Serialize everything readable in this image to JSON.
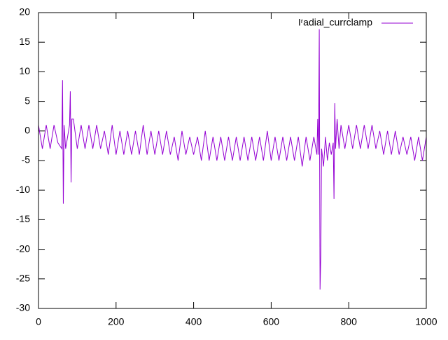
{
  "chart_data": {
    "type": "line",
    "x": [
      0,
      10,
      20,
      30,
      40,
      50,
      60,
      62,
      64,
      66,
      70,
      80,
      82,
      84,
      86,
      90,
      100,
      110,
      120,
      130,
      140,
      150,
      160,
      170,
      180,
      190,
      200,
      210,
      220,
      230,
      240,
      250,
      260,
      270,
      280,
      290,
      300,
      310,
      320,
      330,
      340,
      350,
      360,
      370,
      380,
      390,
      400,
      410,
      420,
      430,
      440,
      450,
      460,
      470,
      480,
      490,
      500,
      510,
      520,
      530,
      540,
      550,
      560,
      570,
      580,
      590,
      600,
      610,
      620,
      630,
      640,
      650,
      660,
      670,
      680,
      690,
      700,
      710,
      718,
      720,
      722,
      724,
      726,
      728,
      730,
      735,
      740,
      745,
      750,
      755,
      760,
      762,
      764,
      766,
      770,
      775,
      780,
      790,
      800,
      810,
      820,
      830,
      840,
      850,
      860,
      870,
      880,
      890,
      900,
      910,
      920,
      930,
      940,
      950,
      960,
      970,
      980,
      990,
      1000
    ],
    "series": [
      {
        "name": "Iʳadial_currclamp",
        "color": "#9400d3",
        "values": [
          1,
          -3,
          1,
          -3,
          1,
          -2,
          -3,
          8.6,
          -12.3,
          1,
          -3,
          1,
          6.7,
          -8.7,
          2,
          2,
          -3,
          1,
          -3,
          1,
          -3,
          1,
          -3,
          0,
          -4,
          1,
          -4,
          0,
          -4,
          0,
          -4,
          0,
          -4,
          1,
          -4,
          0,
          -4,
          0,
          -4,
          0,
          -4,
          -1,
          -5,
          0,
          -4,
          -1,
          -4,
          -1,
          -5,
          0,
          -5,
          -1,
          -5,
          -1,
          -5,
          -1,
          -5,
          -1,
          -5,
          -1,
          -5,
          -1,
          -5,
          -1,
          -5,
          0,
          -5,
          -1,
          -5,
          -1,
          -5,
          -1,
          -5,
          -1,
          -6,
          -1,
          -5,
          -1,
          -4,
          2,
          -4,
          17.2,
          -26.8,
          -21,
          -3,
          -6,
          -1,
          -5,
          -2,
          -4,
          -2,
          -11.5,
          4.7,
          -3,
          2,
          -3,
          1,
          -3,
          1,
          -3,
          1,
          -3,
          1,
          -3,
          1,
          -3,
          0,
          -4,
          0,
          -4,
          0,
          -4,
          -1,
          -4,
          -1,
          -5,
          -1,
          -5,
          -1
        ]
      }
    ],
    "xlim": [
      0,
      1000
    ],
    "ylim": [
      -30,
      20
    ],
    "xticks": [
      0,
      200,
      400,
      600,
      800,
      1000
    ],
    "yticks": [
      -30,
      -25,
      -20,
      -15,
      -10,
      -5,
      0,
      5,
      10,
      15,
      20
    ],
    "legend": "top-right"
  }
}
